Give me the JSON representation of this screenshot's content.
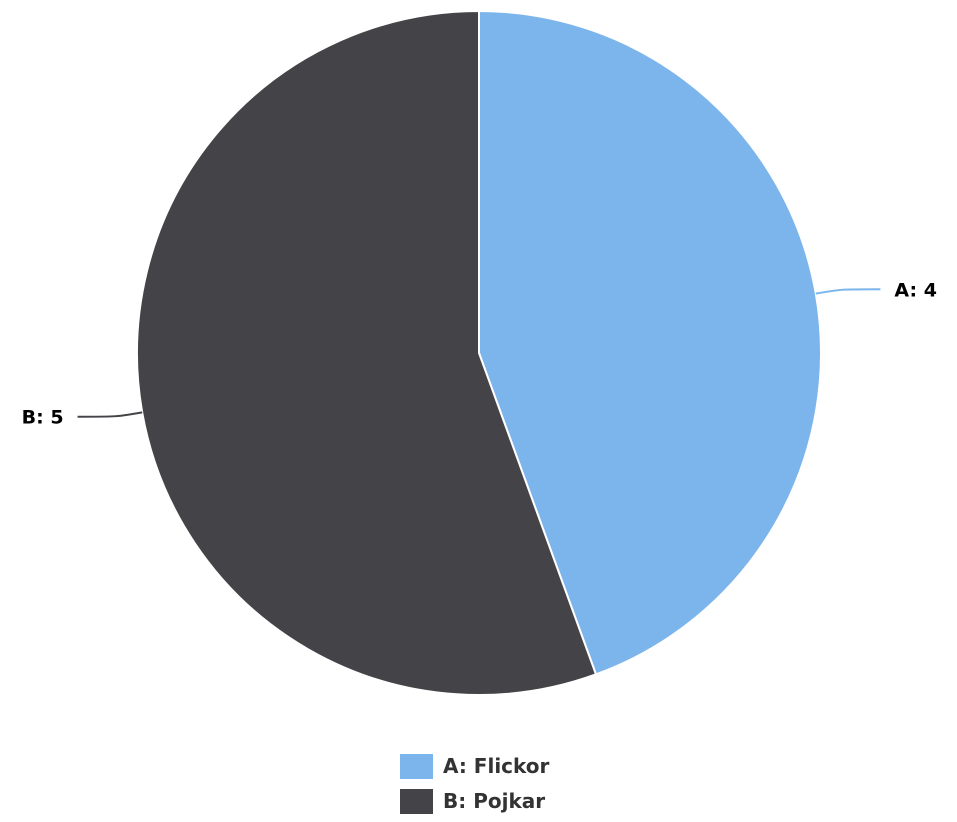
{
  "chart_data": {
    "type": "pie",
    "slices": [
      {
        "label": "A: Flickor",
        "data_label": "A: 4",
        "value": 4,
        "color": "#7cb5ec"
      },
      {
        "label": "B: Pojkar",
        "data_label": "B: 5",
        "value": 5,
        "color": "#434348"
      }
    ],
    "legend_placement": "bottom-center"
  }
}
